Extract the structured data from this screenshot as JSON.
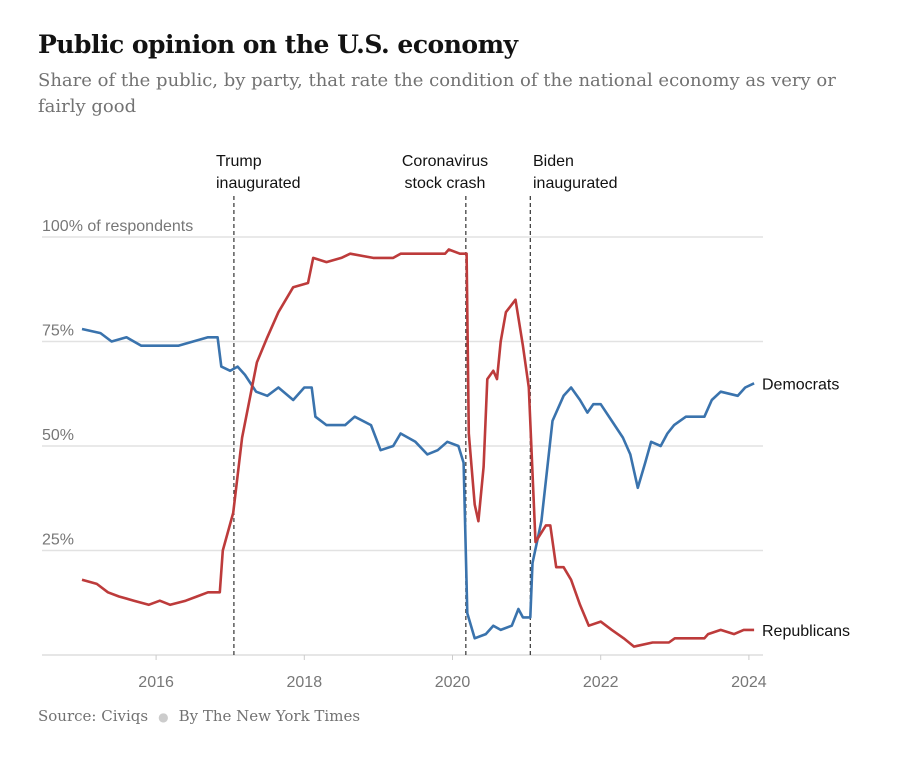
{
  "title": "Public opinion on the U.S. economy",
  "subtitle": "Share of the public, by party, that rate the condition of the national economy as very or fairly good",
  "footer": {
    "source": "Source: Civiqs",
    "byline": "By The New York Times"
  },
  "chart_data": {
    "type": "line",
    "title": "Public opinion on the U.S. economy",
    "xlabel": "",
    "ylabel": "% of respondents",
    "xlim": [
      2015,
      2024.1
    ],
    "ylim": [
      0,
      100
    ],
    "x_ticks": [
      2016,
      2018,
      2020,
      2022,
      2024
    ],
    "x_tick_labels": [
      "2016",
      "2018",
      "2020",
      "2022",
      "2024"
    ],
    "y_ticks": [
      25,
      50,
      75,
      100
    ],
    "y_tick_labels": [
      "25%",
      "50%",
      "75%",
      "100% of respondents"
    ],
    "grid": true,
    "annotations": [
      {
        "x": 2017.05,
        "lines": [
          "Trump",
          "inaugurated"
        ]
      },
      {
        "x": 2020.18,
        "lines": [
          "Coronavirus",
          "stock crash"
        ]
      },
      {
        "x": 2021.05,
        "lines": [
          "Biden",
          "inaugurated"
        ]
      }
    ],
    "colors": {
      "Democrats": "#3a73ad",
      "Republicans": "#bd3b3b"
    },
    "series": [
      {
        "name": "Democrats",
        "points": [
          [
            2015.0,
            78
          ],
          [
            2015.25,
            77
          ],
          [
            2015.4,
            75
          ],
          [
            2015.6,
            76
          ],
          [
            2015.8,
            74
          ],
          [
            2016.0,
            74
          ],
          [
            2016.3,
            74
          ],
          [
            2016.5,
            75
          ],
          [
            2016.7,
            76
          ],
          [
            2016.83,
            76
          ],
          [
            2016.88,
            69
          ],
          [
            2017.0,
            68
          ],
          [
            2017.1,
            69
          ],
          [
            2017.2,
            67
          ],
          [
            2017.35,
            63
          ],
          [
            2017.5,
            62
          ],
          [
            2017.65,
            64
          ],
          [
            2017.85,
            61
          ],
          [
            2018.0,
            64
          ],
          [
            2018.1,
            64
          ],
          [
            2018.15,
            57
          ],
          [
            2018.3,
            55
          ],
          [
            2018.55,
            55
          ],
          [
            2018.68,
            57
          ],
          [
            2018.9,
            55
          ],
          [
            2019.03,
            49
          ],
          [
            2019.2,
            50
          ],
          [
            2019.3,
            53
          ],
          [
            2019.5,
            51
          ],
          [
            2019.66,
            48
          ],
          [
            2019.8,
            49
          ],
          [
            2019.93,
            51
          ],
          [
            2020.08,
            50
          ],
          [
            2020.15,
            46
          ],
          [
            2020.2,
            10
          ],
          [
            2020.3,
            4
          ],
          [
            2020.45,
            5
          ],
          [
            2020.55,
            7
          ],
          [
            2020.65,
            6
          ],
          [
            2020.8,
            7
          ],
          [
            2020.89,
            11
          ],
          [
            2020.95,
            9
          ],
          [
            2021.05,
            9
          ],
          [
            2021.08,
            22
          ],
          [
            2021.2,
            32
          ],
          [
            2021.35,
            56
          ],
          [
            2021.5,
            62
          ],
          [
            2021.6,
            64
          ],
          [
            2021.72,
            61
          ],
          [
            2021.82,
            58
          ],
          [
            2021.9,
            60
          ],
          [
            2022.0,
            60
          ],
          [
            2022.15,
            56
          ],
          [
            2022.3,
            52
          ],
          [
            2022.4,
            48
          ],
          [
            2022.5,
            40
          ],
          [
            2022.6,
            46
          ],
          [
            2022.68,
            51
          ],
          [
            2022.81,
            50
          ],
          [
            2022.9,
            53
          ],
          [
            2022.99,
            55
          ],
          [
            2023.15,
            57
          ],
          [
            2023.4,
            57
          ],
          [
            2023.5,
            61
          ],
          [
            2023.62,
            63
          ],
          [
            2023.85,
            62
          ],
          [
            2023.95,
            64
          ],
          [
            2024.07,
            65
          ]
        ]
      },
      {
        "name": "Republicans",
        "points": [
          [
            2015.0,
            18
          ],
          [
            2015.2,
            17
          ],
          [
            2015.35,
            15
          ],
          [
            2015.5,
            14
          ],
          [
            2015.7,
            13
          ],
          [
            2015.9,
            12
          ],
          [
            2016.05,
            13
          ],
          [
            2016.19,
            12
          ],
          [
            2016.4,
            13
          ],
          [
            2016.55,
            14
          ],
          [
            2016.7,
            15
          ],
          [
            2016.86,
            15
          ],
          [
            2016.9,
            25
          ],
          [
            2017.04,
            34
          ],
          [
            2017.16,
            52
          ],
          [
            2017.36,
            70
          ],
          [
            2017.5,
            76
          ],
          [
            2017.65,
            82
          ],
          [
            2017.85,
            88
          ],
          [
            2018.05,
            89
          ],
          [
            2018.12,
            95
          ],
          [
            2018.3,
            94
          ],
          [
            2018.5,
            95
          ],
          [
            2018.62,
            96
          ],
          [
            2018.93,
            95
          ],
          [
            2019.2,
            95
          ],
          [
            2019.3,
            96
          ],
          [
            2019.9,
            96
          ],
          [
            2019.95,
            97
          ],
          [
            2020.1,
            96
          ],
          [
            2020.19,
            96
          ],
          [
            2020.22,
            53
          ],
          [
            2020.3,
            36
          ],
          [
            2020.35,
            32
          ],
          [
            2020.42,
            45
          ],
          [
            2020.47,
            66
          ],
          [
            2020.55,
            68
          ],
          [
            2020.6,
            66
          ],
          [
            2020.65,
            75
          ],
          [
            2020.72,
            82
          ],
          [
            2020.85,
            85
          ],
          [
            2020.95,
            74
          ],
          [
            2021.03,
            64
          ],
          [
            2021.12,
            27
          ],
          [
            2021.26,
            31
          ],
          [
            2021.32,
            31
          ],
          [
            2021.4,
            21
          ],
          [
            2021.5,
            21
          ],
          [
            2021.6,
            18
          ],
          [
            2021.72,
            12
          ],
          [
            2021.84,
            7
          ],
          [
            2022.0,
            8
          ],
          [
            2022.15,
            6
          ],
          [
            2022.31,
            4
          ],
          [
            2022.45,
            2
          ],
          [
            2022.7,
            3
          ],
          [
            2022.92,
            3
          ],
          [
            2023.0,
            4
          ],
          [
            2023.4,
            4
          ],
          [
            2023.45,
            5
          ],
          [
            2023.62,
            6
          ],
          [
            2023.8,
            5
          ],
          [
            2023.93,
            6
          ],
          [
            2024.07,
            6
          ]
        ]
      }
    ]
  }
}
